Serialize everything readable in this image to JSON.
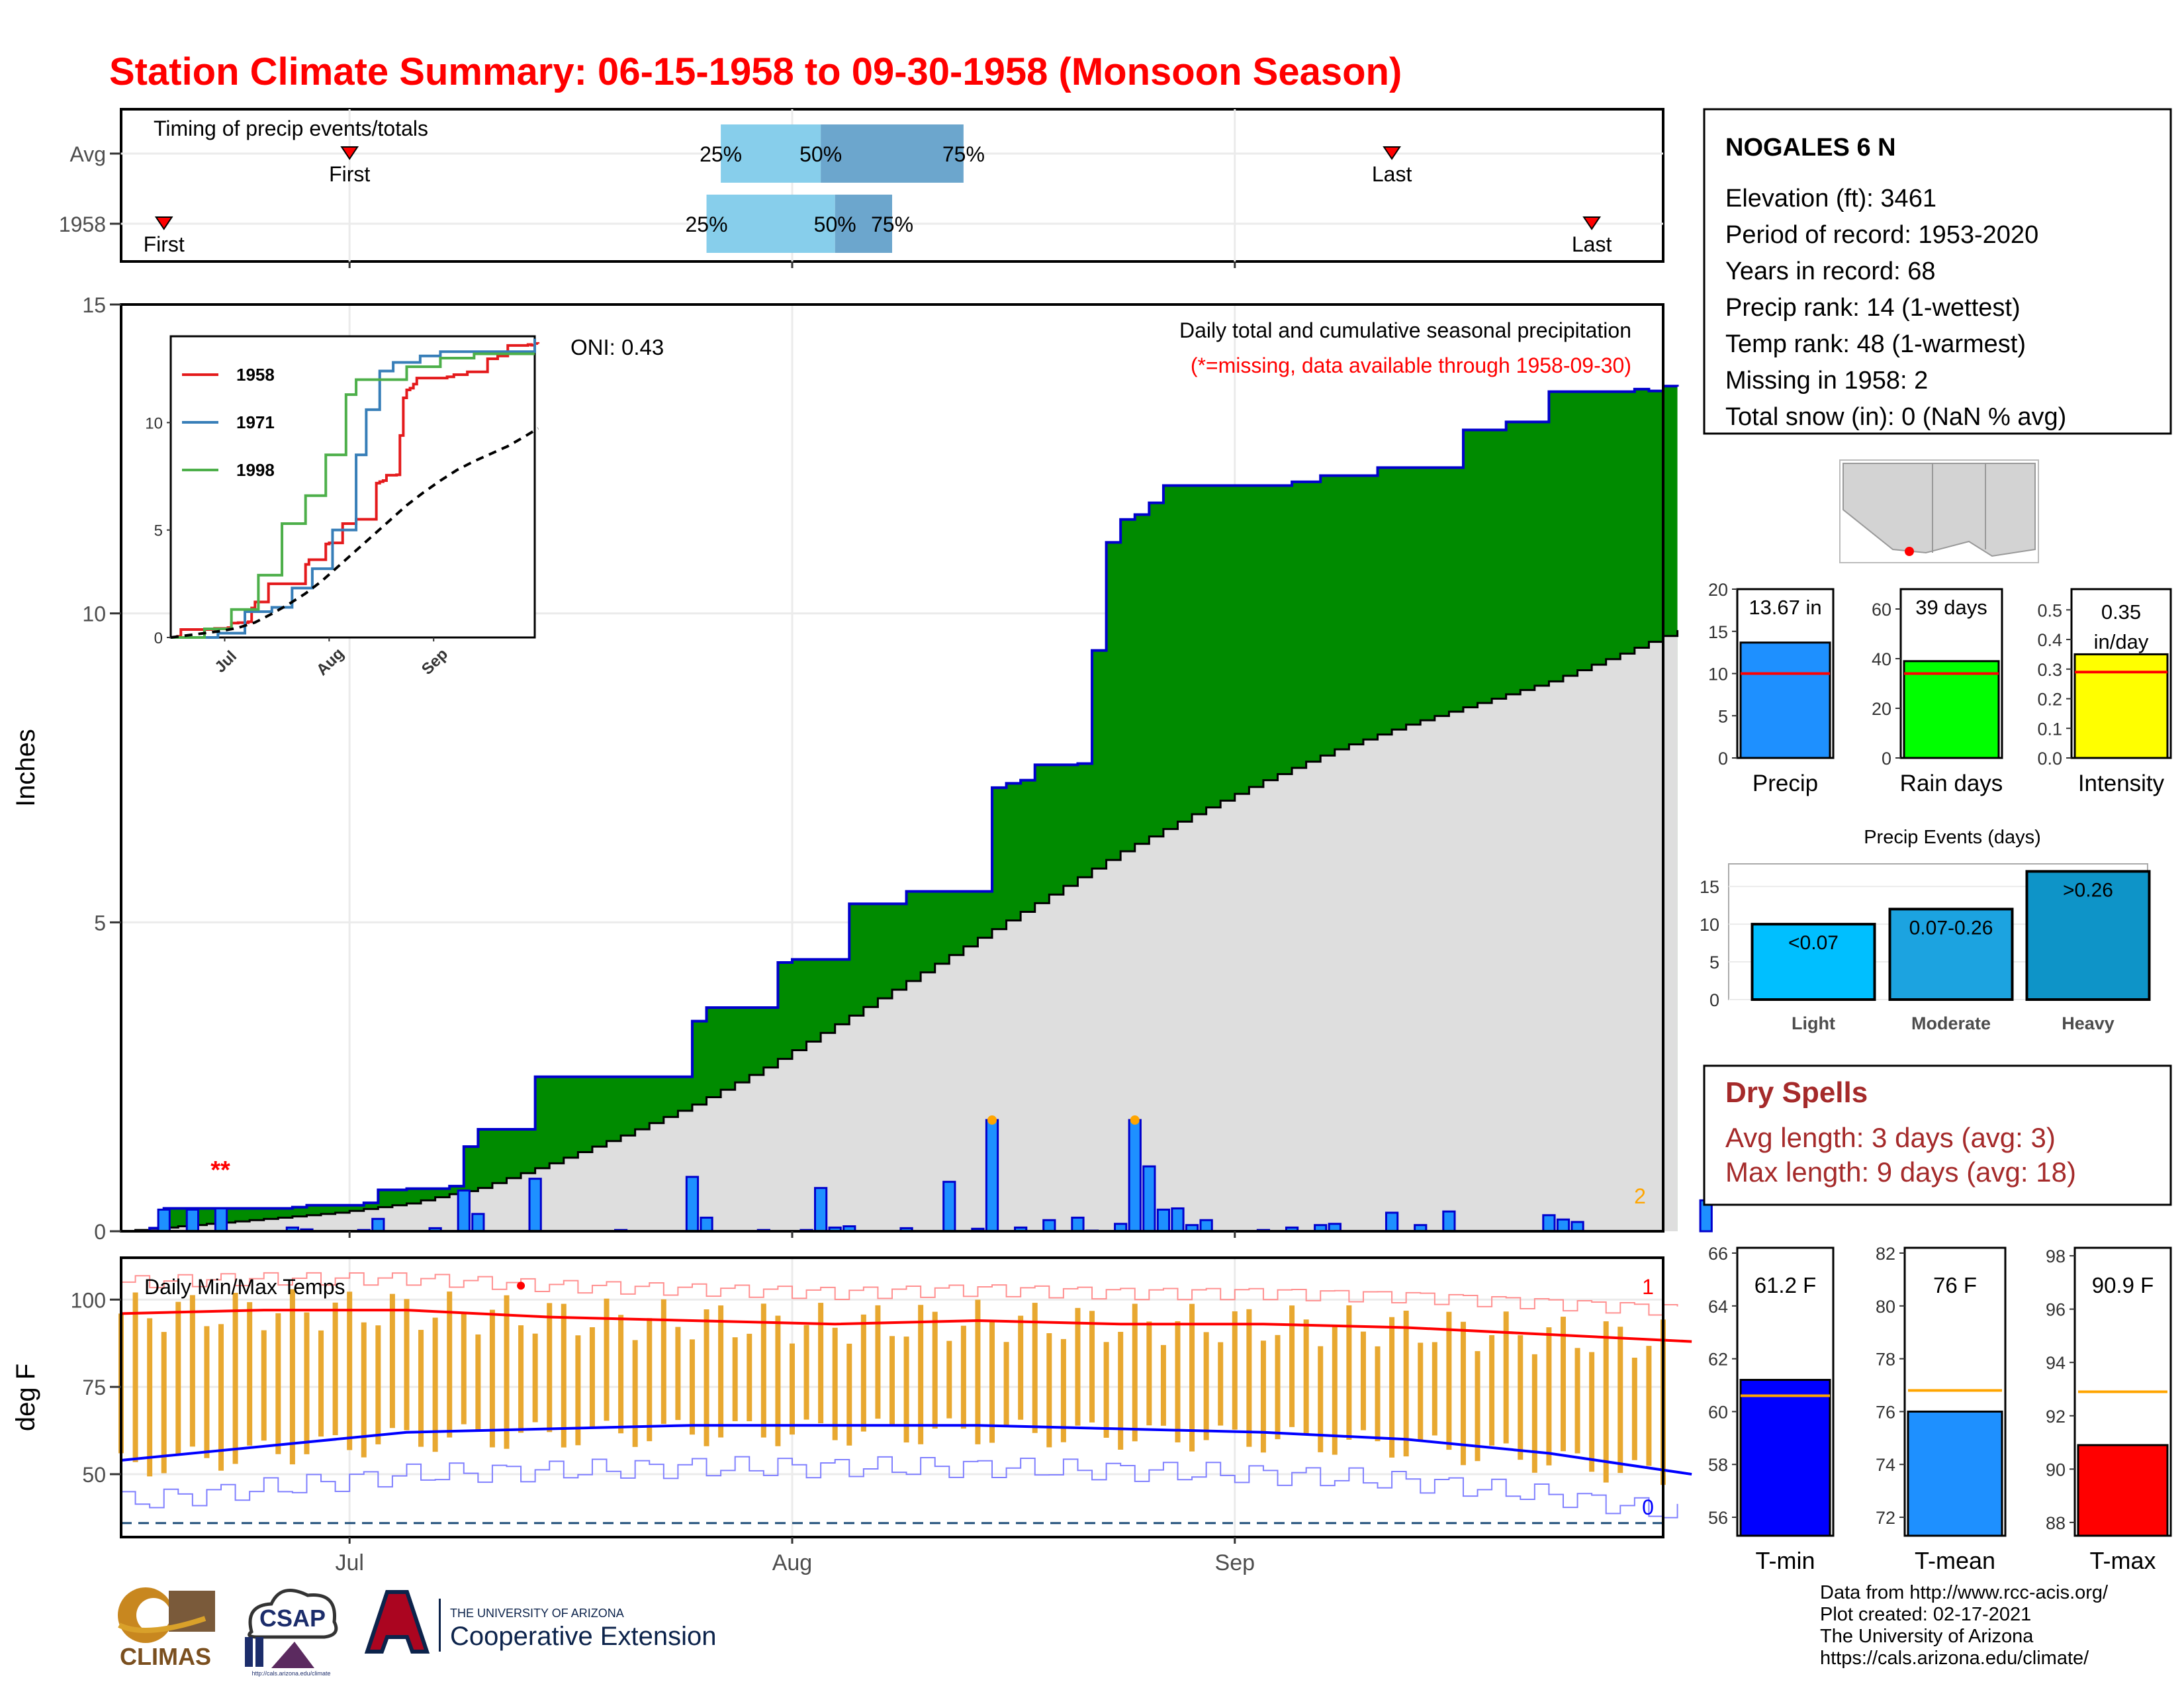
{
  "title": "Station Climate Summary: 06-15-1958 to 09-30-1958 (Monsoon Season)",
  "timing_panel": {
    "heading": "Timing of precip events/totals",
    "rows": [
      {
        "label": "Avg",
        "first": "07-01",
        "q25": "07-27",
        "q50": "08-03",
        "q75": "08-13",
        "last": "09-12",
        "first_label": "First",
        "last_label": "Last",
        "q25_label": "25%",
        "q50_label": "50%",
        "q75_label": "75%"
      },
      {
        "label": "1958",
        "first": "06-18",
        "q25": "07-26",
        "q50": "08-04",
        "q75": "08-08",
        "last": "09-26",
        "first_label": "First",
        "last_label": "Last",
        "q25_label": "25%",
        "q50_label": "50%",
        "q75_label": "75%"
      }
    ]
  },
  "precip_panel": {
    "ylabel": "Inches",
    "ylim": [
      0,
      15
    ],
    "yticks": [
      "0",
      "5",
      "10",
      "15"
    ],
    "oni": "ONI: 0.43",
    "subtitle": "Daily total and cumulative seasonal precipitation",
    "missing_note": "(*=missing, data available through 1958-09-30)",
    "missing_marks": "**",
    "missing_count": "2"
  },
  "inset": {
    "yticks": [
      "0",
      "5",
      "10"
    ],
    "xticks": [
      "Jul",
      "Aug",
      "Sep"
    ],
    "series": [
      {
        "name": "1958",
        "color": "#e41a1c"
      },
      {
        "name": "1971",
        "color": "#377eb8"
      },
      {
        "name": "1998",
        "color": "#4daf4a"
      }
    ]
  },
  "temp_panel": {
    "ylabel": "deg F",
    "title": "Daily Min/Max Temps",
    "yticks": [
      "50",
      "75",
      "100"
    ],
    "xticks": [
      "Jul",
      "Aug",
      "Sep"
    ],
    "max_record_count": "1",
    "min_record_count": "0"
  },
  "station": {
    "name": "NOGALES 6 N",
    "lines": [
      "Elevation (ft): 3461",
      "Period of record: 1953-2020",
      "Years in record: 68",
      "Precip rank: 14 (1-wettest)",
      "Temp rank: 48 (1-warmest)",
      "Missing in 1958: 2",
      "Total snow (in): 0 (NaN % avg)"
    ]
  },
  "stat_bars": [
    {
      "label": "Precip",
      "value": 13.67,
      "value_text": "13.67 in",
      "avg": 10.0,
      "ylim": [
        0,
        20
      ],
      "yticks": [
        "0",
        "5",
        "10",
        "15",
        "20"
      ],
      "color": "#1e90ff"
    },
    {
      "label": "Rain days",
      "value": 39,
      "value_text": "39 days",
      "avg": 34,
      "ylim": [
        0,
        68
      ],
      "yticks": [
        "0",
        "20",
        "40",
        "60"
      ],
      "color": "#00ff00"
    },
    {
      "label": "Intensity",
      "value": 0.35,
      "value_text": "0.35 in/day",
      "avg": 0.29,
      "ylim": [
        0,
        0.57
      ],
      "yticks": [
        "0.0",
        "0.1",
        "0.2",
        "0.3",
        "0.4",
        "0.5"
      ],
      "color": "#ffff00"
    }
  ],
  "events": {
    "title": "Precip Events (days)",
    "ylim": [
      0,
      18
    ],
    "yticks": [
      "0",
      "5",
      "10",
      "15"
    ],
    "bars": [
      {
        "label": "Light",
        "value": 10,
        "range": "<0.07",
        "color": "#00bfff"
      },
      {
        "label": "Moderate",
        "value": 12,
        "range": "0.07-0.26",
        "color": "#1ca3e0"
      },
      {
        "label": "Heavy",
        "value": 17,
        "range": ">0.26",
        "color": "#0e94c8"
      }
    ]
  },
  "dry_spells": {
    "title": "Dry Spells",
    "avg_line": "Avg length: 3 days (avg: 3)",
    "max_line": "Max length: 9 days (avg: 18)"
  },
  "temp_bars": [
    {
      "label": "T-min",
      "value": 61.2,
      "value_text": "61.2 F",
      "avg": 60.6,
      "ylim": [
        55.3,
        66.2
      ],
      "ticks": [
        56,
        58,
        60,
        62,
        64,
        66
      ],
      "color": "#0000ff"
    },
    {
      "label": "T-mean",
      "value": 76.0,
      "value_text": "76 F",
      "avg": 76.8,
      "ylim": [
        71.3,
        82.2
      ],
      "ticks": [
        72,
        74,
        76,
        78,
        80,
        82
      ],
      "color": "#1e90ff"
    },
    {
      "label": "T-max",
      "value": 90.9,
      "value_text": "90.9 F",
      "avg": 92.9,
      "ylim": [
        87.5,
        98.3
      ],
      "ticks": [
        88,
        90,
        92,
        94,
        96,
        98
      ],
      "color": "#ff0000"
    }
  ],
  "credits": [
    "Data from http://www.rcc-acis.org/",
    "Plot created: 02-17-2021",
    "The University of Arizona",
    "https://cals.arizona.edu/climate/"
  ],
  "logos": {
    "climas": "CLIMAS",
    "csap": "CSAP",
    "csap_url": "http://cals.arizona.edu/climate",
    "ua_line1": "THE UNIVERSITY OF ARIZONA",
    "ua_line2": "Cooperative Extension"
  },
  "chart_data": {
    "type": "area",
    "title": "Daily total and cumulative seasonal precipitation",
    "ylabel": "Inches",
    "ylim": [
      0,
      15
    ],
    "x_range": [
      "1958-06-15",
      "1958-09-30"
    ],
    "series": [
      {
        "name": "1958",
        "cumulative": [
          [
            0,
            0
          ],
          [
            2,
            0.05
          ],
          [
            3,
            0.37
          ],
          [
            10,
            0.37
          ],
          [
            12,
            0.39
          ],
          [
            13,
            0.42
          ],
          [
            17,
            0.46
          ],
          [
            18,
            0.67
          ],
          [
            20,
            0.69
          ],
          [
            23,
            0.73
          ],
          [
            24,
            1.37
          ],
          [
            25,
            1.65
          ],
          [
            28,
            1.65
          ],
          [
            29,
            2.5
          ],
          [
            39,
            2.5
          ],
          [
            40,
            3.4
          ],
          [
            41,
            3.62
          ],
          [
            45,
            3.62
          ],
          [
            46,
            4.35
          ],
          [
            47,
            4.4
          ],
          [
            50,
            4.4
          ],
          [
            51,
            5.3
          ],
          [
            54,
            5.3
          ],
          [
            55,
            5.5
          ],
          [
            60,
            5.5
          ],
          [
            61,
            7.18
          ],
          [
            62,
            7.25
          ],
          [
            63,
            7.3
          ],
          [
            64,
            7.55
          ],
          [
            67,
            7.57
          ],
          [
            68,
            9.4
          ],
          [
            69,
            11.15
          ],
          [
            70,
            11.52
          ],
          [
            71,
            11.6
          ],
          [
            72,
            11.79
          ],
          [
            73,
            12.07
          ],
          [
            80,
            12.07
          ],
          [
            82,
            12.13
          ],
          [
            83,
            12.13
          ],
          [
            84,
            12.23
          ],
          [
            88,
            12.36
          ],
          [
            93,
            12.36
          ],
          [
            94,
            12.97
          ],
          [
            95,
            12.97
          ],
          [
            96,
            12.97
          ],
          [
            97,
            13.1
          ],
          [
            99,
            13.1
          ],
          [
            100,
            13.59
          ],
          [
            106,
            13.63
          ],
          [
            107,
            13.6
          ],
          [
            108,
            13.68
          ],
          [
            109,
            13.67
          ]
        ]
      },
      {
        "name": "Average cumulative",
        "cumulative": [
          [
            0,
            0
          ],
          [
            5,
            0.1
          ],
          [
            10,
            0.2
          ],
          [
            15,
            0.3
          ],
          [
            20,
            0.45
          ],
          [
            25,
            0.7
          ],
          [
            30,
            1.1
          ],
          [
            35,
            1.55
          ],
          [
            40,
            2.05
          ],
          [
            45,
            2.65
          ],
          [
            50,
            3.35
          ],
          [
            55,
            4.05
          ],
          [
            60,
            4.75
          ],
          [
            65,
            5.45
          ],
          [
            70,
            6.15
          ],
          [
            75,
            6.75
          ],
          [
            80,
            7.3
          ],
          [
            85,
            7.8
          ],
          [
            90,
            8.2
          ],
          [
            95,
            8.55
          ],
          [
            100,
            8.9
          ],
          [
            105,
            9.35
          ],
          [
            109,
            9.73
          ]
        ]
      }
    ],
    "daily_precip": [
      [
        3,
        0.35
      ],
      [
        5,
        0.35
      ],
      [
        7,
        0.37
      ],
      [
        12,
        0.06
      ],
      [
        13,
        0.03
      ],
      [
        17,
        0.02
      ],
      [
        18,
        0.2
      ],
      [
        22,
        0.05
      ],
      [
        24,
        0.66
      ],
      [
        25,
        0.28
      ],
      [
        29,
        0.85
      ],
      [
        35,
        0.02
      ],
      [
        40,
        0.88
      ],
      [
        41,
        0.22
      ],
      [
        45,
        0.02
      ],
      [
        48,
        0.02
      ],
      [
        49,
        0.7
      ],
      [
        50,
        0.06
      ],
      [
        51,
        0.08
      ],
      [
        55,
        0.05
      ],
      [
        58,
        0.8
      ],
      [
        60,
        0.04
      ],
      [
        61,
        1.8
      ],
      [
        63,
        0.06
      ],
      [
        65,
        0.18
      ],
      [
        67,
        0.22
      ],
      [
        68,
        0.01
      ],
      [
        70,
        0.12
      ],
      [
        71,
        1.8
      ],
      [
        72,
        1.05
      ],
      [
        73,
        0.35
      ],
      [
        74,
        0.37
      ],
      [
        75,
        0.1
      ],
      [
        76,
        0.18
      ],
      [
        80,
        0.02
      ],
      [
        82,
        0.06
      ],
      [
        84,
        0.1
      ],
      [
        85,
        0.12
      ],
      [
        89,
        0.3
      ],
      [
        91,
        0.1
      ],
      [
        93,
        0.32
      ],
      [
        100,
        0.26
      ],
      [
        101,
        0.19
      ],
      [
        102,
        0.15
      ],
      [
        111,
        0.5
      ]
    ],
    "temps": {
      "ylim": [
        32,
        112
      ],
      "max_avg": [
        [
          0,
          96
        ],
        [
          10,
          97
        ],
        [
          20,
          97
        ],
        [
          30,
          95
        ],
        [
          40,
          94
        ],
        [
          50,
          93
        ],
        [
          60,
          94
        ],
        [
          70,
          93
        ],
        [
          80,
          93
        ],
        [
          90,
          92
        ],
        [
          100,
          90
        ],
        [
          110,
          88
        ]
      ],
      "min_avg": [
        [
          0,
          54
        ],
        [
          10,
          58
        ],
        [
          20,
          62
        ],
        [
          30,
          63
        ],
        [
          40,
          64
        ],
        [
          50,
          64
        ],
        [
          60,
          64
        ],
        [
          70,
          63
        ],
        [
          80,
          62
        ],
        [
          90,
          60
        ],
        [
          100,
          56
        ],
        [
          110,
          50
        ]
      ]
    },
    "legend": "top-left"
  }
}
